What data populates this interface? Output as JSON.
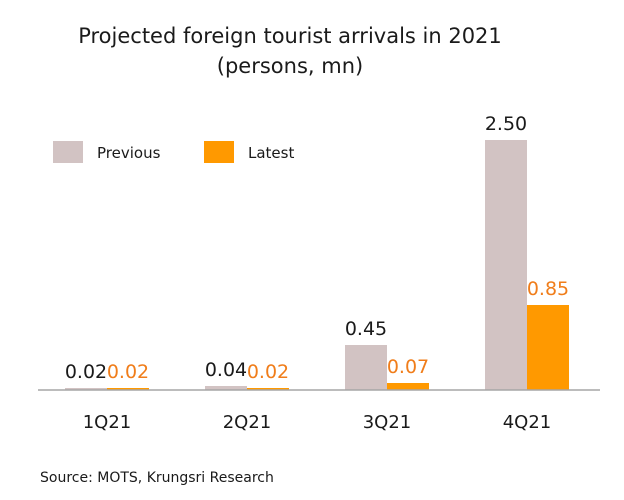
{
  "chart_data": {
    "type": "bar",
    "title": "Projected foreign tourist arrivals in 2021",
    "subtitle": "(persons, mn)",
    "categories": [
      "1Q21",
      "2Q21",
      "3Q21",
      "4Q21"
    ],
    "series": [
      {
        "name": "Previous",
        "values": [
          0.02,
          0.04,
          0.45,
          2.5
        ],
        "labels": [
          "0.02",
          "0.04",
          "0.45",
          "2.50"
        ],
        "color": "#d2c3c3",
        "label_color": "#1a1a1a"
      },
      {
        "name": "Latest",
        "values": [
          0.02,
          0.02,
          0.07,
          0.85
        ],
        "labels": [
          "0.02",
          "0.02",
          "0.07",
          "0.85"
        ],
        "color": "#ff9900",
        "label_color": "#f07d1a"
      }
    ],
    "ylim": [
      0,
      2.5
    ],
    "grid": false,
    "legend_position": "top-left"
  },
  "source": "Source: MOTS, Krungsri Research"
}
